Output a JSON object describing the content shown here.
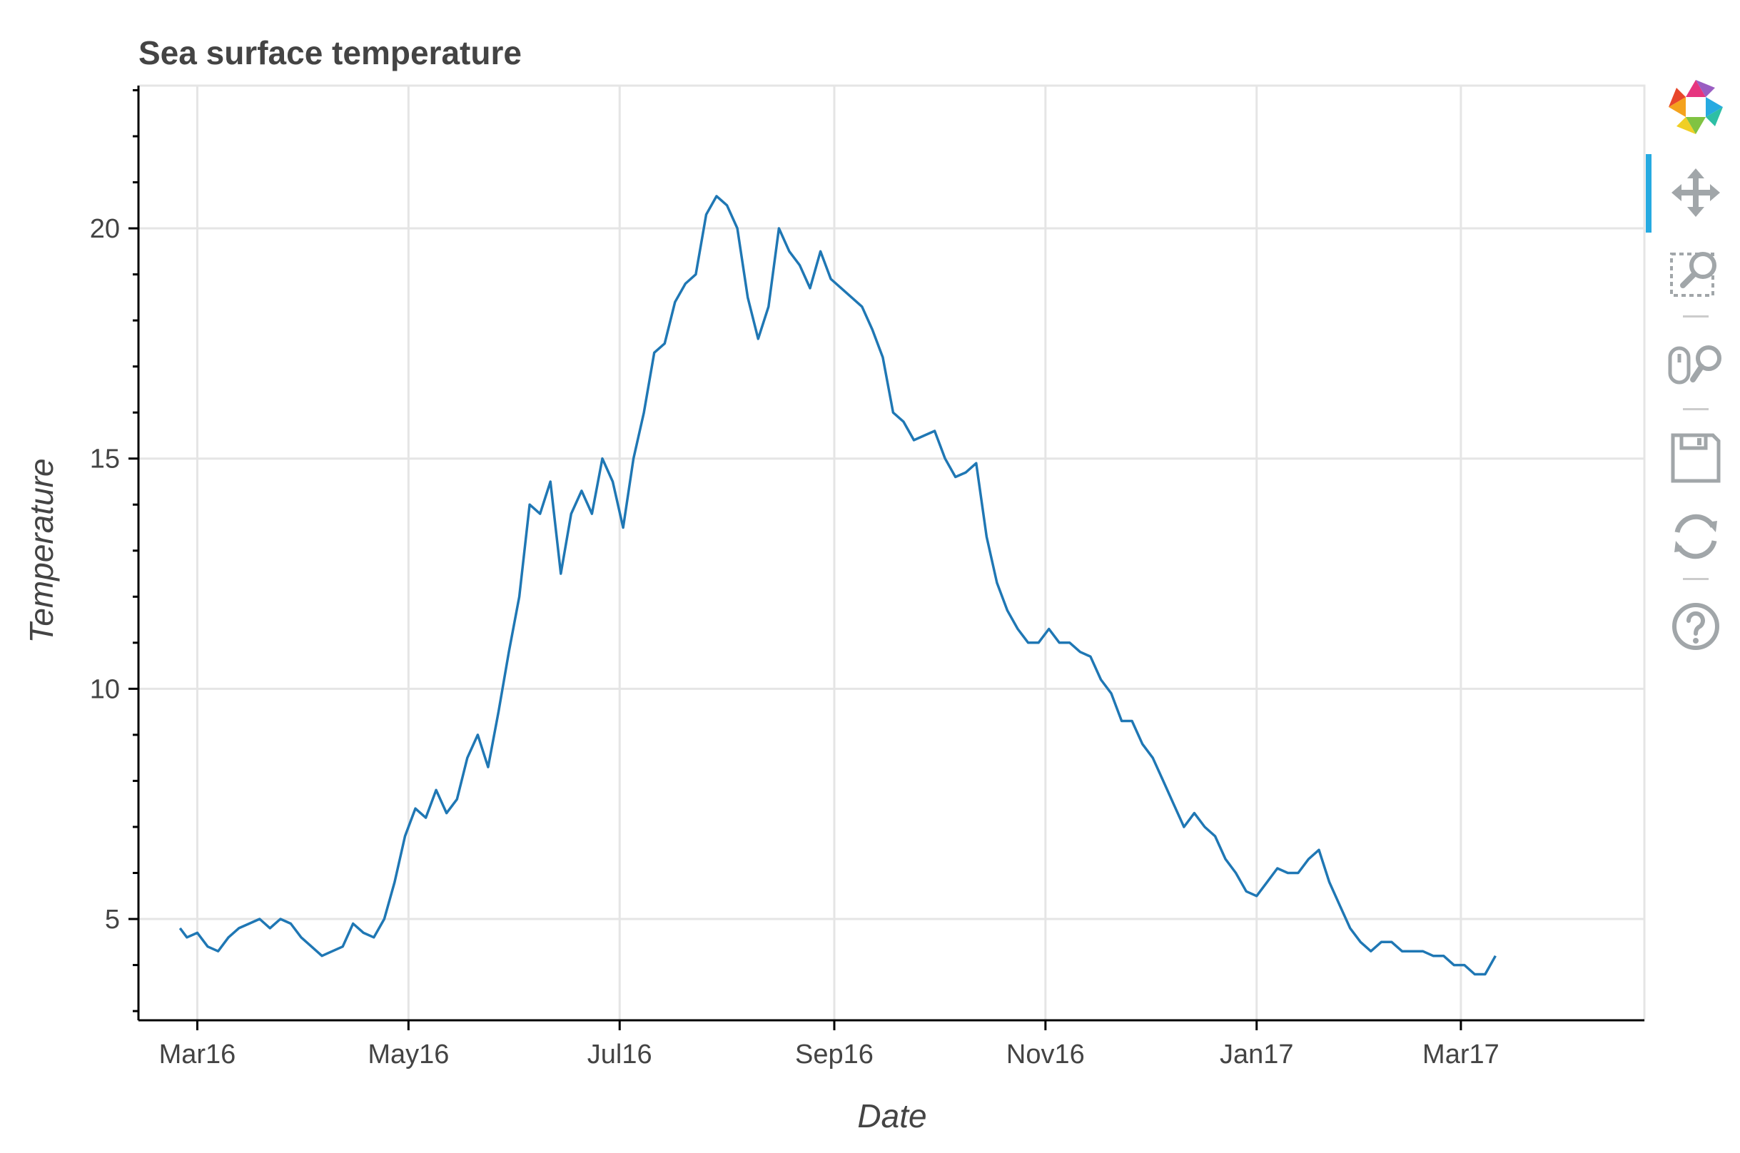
{
  "chart_data": {
    "type": "line",
    "title": "Sea surface temperature",
    "xlabel": "Date",
    "ylabel": "Temperature",
    "xlim": [
      "2016-02-13",
      "2017-04-23"
    ],
    "ylim": [
      2.8,
      23.1
    ],
    "x_ticks": [
      {
        "date": "2016-03-01",
        "label": "Mar16"
      },
      {
        "date": "2016-05-01",
        "label": "May16"
      },
      {
        "date": "2016-07-01",
        "label": "Jul16"
      },
      {
        "date": "2016-09-01",
        "label": "Sep16"
      },
      {
        "date": "2016-11-01",
        "label": "Nov16"
      },
      {
        "date": "2017-01-01",
        "label": "Jan17"
      },
      {
        "date": "2017-03-01",
        "label": "Mar17"
      }
    ],
    "y_ticks": [
      5,
      10,
      15,
      20
    ],
    "y_minor_step": 1,
    "grid": true,
    "color": "#1f77b4",
    "series": [
      {
        "name": "",
        "points": [
          [
            "2016-02-25",
            4.8
          ],
          [
            "2016-02-27",
            4.6
          ],
          [
            "2016-03-01",
            4.7
          ],
          [
            "2016-03-04",
            4.4
          ],
          [
            "2016-03-07",
            4.3
          ],
          [
            "2016-03-10",
            4.6
          ],
          [
            "2016-03-13",
            4.8
          ],
          [
            "2016-03-16",
            4.9
          ],
          [
            "2016-03-19",
            5.0
          ],
          [
            "2016-03-22",
            4.8
          ],
          [
            "2016-03-25",
            5.0
          ],
          [
            "2016-03-28",
            4.9
          ],
          [
            "2016-03-31",
            4.6
          ],
          [
            "2016-04-03",
            4.4
          ],
          [
            "2016-04-06",
            4.2
          ],
          [
            "2016-04-09",
            4.3
          ],
          [
            "2016-04-12",
            4.4
          ],
          [
            "2016-04-15",
            4.9
          ],
          [
            "2016-04-18",
            4.7
          ],
          [
            "2016-04-21",
            4.6
          ],
          [
            "2016-04-24",
            5.0
          ],
          [
            "2016-04-27",
            5.8
          ],
          [
            "2016-04-30",
            6.8
          ],
          [
            "2016-05-03",
            7.4
          ],
          [
            "2016-05-06",
            7.2
          ],
          [
            "2016-05-09",
            7.8
          ],
          [
            "2016-05-12",
            7.3
          ],
          [
            "2016-05-15",
            7.6
          ],
          [
            "2016-05-18",
            8.5
          ],
          [
            "2016-05-21",
            9.0
          ],
          [
            "2016-05-24",
            8.3
          ],
          [
            "2016-05-27",
            9.5
          ],
          [
            "2016-05-30",
            10.8
          ],
          [
            "2016-06-02",
            12.0
          ],
          [
            "2016-06-05",
            14.0
          ],
          [
            "2016-06-08",
            13.8
          ],
          [
            "2016-06-11",
            14.5
          ],
          [
            "2016-06-14",
            12.5
          ],
          [
            "2016-06-17",
            13.8
          ],
          [
            "2016-06-20",
            14.3
          ],
          [
            "2016-06-23",
            13.8
          ],
          [
            "2016-06-26",
            15.0
          ],
          [
            "2016-06-29",
            14.5
          ],
          [
            "2016-07-02",
            13.5
          ],
          [
            "2016-07-05",
            15.0
          ],
          [
            "2016-07-08",
            16.0
          ],
          [
            "2016-07-11",
            17.3
          ],
          [
            "2016-07-14",
            17.5
          ],
          [
            "2016-07-17",
            18.4
          ],
          [
            "2016-07-20",
            18.8
          ],
          [
            "2016-07-23",
            19.0
          ],
          [
            "2016-07-26",
            20.3
          ],
          [
            "2016-07-29",
            20.7
          ],
          [
            "2016-08-01",
            20.5
          ],
          [
            "2016-08-04",
            20.0
          ],
          [
            "2016-08-07",
            18.5
          ],
          [
            "2016-08-10",
            17.6
          ],
          [
            "2016-08-13",
            18.3
          ],
          [
            "2016-08-16",
            20.0
          ],
          [
            "2016-08-19",
            19.5
          ],
          [
            "2016-08-22",
            19.2
          ],
          [
            "2016-08-25",
            18.7
          ],
          [
            "2016-08-28",
            19.5
          ],
          [
            "2016-08-31",
            18.9
          ],
          [
            "2016-09-03",
            18.7
          ],
          [
            "2016-09-06",
            18.5
          ],
          [
            "2016-09-09",
            18.3
          ],
          [
            "2016-09-12",
            17.8
          ],
          [
            "2016-09-15",
            17.2
          ],
          [
            "2016-09-18",
            16.0
          ],
          [
            "2016-09-21",
            15.8
          ],
          [
            "2016-09-24",
            15.4
          ],
          [
            "2016-09-27",
            15.5
          ],
          [
            "2016-09-30",
            15.6
          ],
          [
            "2016-10-03",
            15.0
          ],
          [
            "2016-10-06",
            14.6
          ],
          [
            "2016-10-09",
            14.7
          ],
          [
            "2016-10-12",
            14.9
          ],
          [
            "2016-10-15",
            13.3
          ],
          [
            "2016-10-18",
            12.3
          ],
          [
            "2016-10-21",
            11.7
          ],
          [
            "2016-10-24",
            11.3
          ],
          [
            "2016-10-27",
            11.0
          ],
          [
            "2016-10-30",
            11.0
          ],
          [
            "2016-11-02",
            11.3
          ],
          [
            "2016-11-05",
            11.0
          ],
          [
            "2016-11-08",
            11.0
          ],
          [
            "2016-11-11",
            10.8
          ],
          [
            "2016-11-14",
            10.7
          ],
          [
            "2016-11-17",
            10.2
          ],
          [
            "2016-11-20",
            9.9
          ],
          [
            "2016-11-23",
            9.3
          ],
          [
            "2016-11-26",
            9.3
          ],
          [
            "2016-11-29",
            8.8
          ],
          [
            "2016-12-02",
            8.5
          ],
          [
            "2016-12-05",
            8.0
          ],
          [
            "2016-12-08",
            7.5
          ],
          [
            "2016-12-11",
            7.0
          ],
          [
            "2016-12-14",
            7.3
          ],
          [
            "2016-12-17",
            7.0
          ],
          [
            "2016-12-20",
            6.8
          ],
          [
            "2016-12-23",
            6.3
          ],
          [
            "2016-12-26",
            6.0
          ],
          [
            "2016-12-29",
            5.6
          ],
          [
            "2017-01-01",
            5.5
          ],
          [
            "2017-01-04",
            5.8
          ],
          [
            "2017-01-07",
            6.1
          ],
          [
            "2017-01-10",
            6.0
          ],
          [
            "2017-01-13",
            6.0
          ],
          [
            "2017-01-16",
            6.3
          ],
          [
            "2017-01-19",
            6.5
          ],
          [
            "2017-01-22",
            5.8
          ],
          [
            "2017-01-25",
            5.3
          ],
          [
            "2017-01-28",
            4.8
          ],
          [
            "2017-01-31",
            4.5
          ],
          [
            "2017-02-03",
            4.3
          ],
          [
            "2017-02-06",
            4.5
          ],
          [
            "2017-02-09",
            4.5
          ],
          [
            "2017-02-12",
            4.3
          ],
          [
            "2017-02-15",
            4.3
          ],
          [
            "2017-02-18",
            4.3
          ],
          [
            "2017-02-21",
            4.2
          ],
          [
            "2017-02-24",
            4.2
          ],
          [
            "2017-02-27",
            4.0
          ],
          [
            "2017-03-02",
            4.0
          ],
          [
            "2017-03-05",
            3.8
          ],
          [
            "2017-03-08",
            3.8
          ],
          [
            "2017-03-11",
            4.2
          ]
        ]
      }
    ]
  }
}
